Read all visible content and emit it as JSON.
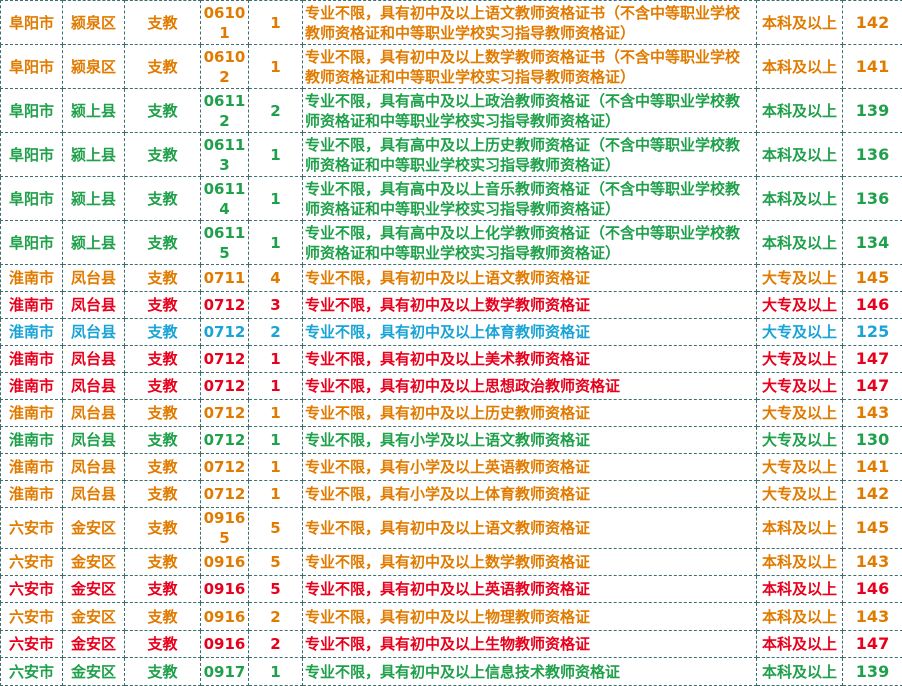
{
  "colors": {
    "orange": "#e07b00",
    "green": "#1fa04a",
    "red": "#e8001c",
    "blue": "#1aa3d6",
    "border": "#3d6f6f"
  },
  "rows": [
    {
      "city": "阜阳市",
      "district": "颍泉区",
      "type": "支教",
      "code": "0610\n1",
      "count": "1",
      "requirement": "专业不限，具有初中及以上语文教师资格证书（不含中等职业学校教师资格证和中等职业学校实习指导教师资格证）",
      "education": "本科及以上",
      "score": "142",
      "color": "orange",
      "size": "tall"
    },
    {
      "city": "阜阳市",
      "district": "颍泉区",
      "type": "支教",
      "code": "0610\n2",
      "count": "1",
      "requirement": "专业不限，具有初中及以上数学教师资格证书（不含中等职业学校教师资格证和中等职业学校实习指导教师资格证）",
      "education": "本科及以上",
      "score": "141",
      "color": "orange",
      "size": "tall"
    },
    {
      "city": "阜阳市",
      "district": "颍上县",
      "type": "支教",
      "code": "0611\n2",
      "count": "2",
      "requirement": "专业不限，具有高中及以上政治教师资格证（不含中等职业学校教师资格证和中等职业学校实习指导教师资格证）",
      "education": "本科及以上",
      "score": "139",
      "color": "green",
      "size": "tall"
    },
    {
      "city": "阜阳市",
      "district": "颍上县",
      "type": "支教",
      "code": "0611\n3",
      "count": "1",
      "requirement": "专业不限，具有高中及以上历史教师资格证（不含中等职业学校教师资格证和中等职业学校实习指导教师资格证）",
      "education": "本科及以上",
      "score": "136",
      "color": "green",
      "size": "tall"
    },
    {
      "city": "阜阳市",
      "district": "颍上县",
      "type": "支教",
      "code": "0611\n4",
      "count": "1",
      "requirement": "专业不限，具有高中及以上音乐教师资格证（不含中等职业学校教师资格证和中等职业学校实习指导教师资格证）",
      "education": "本科及以上",
      "score": "136",
      "color": "green",
      "size": "tall"
    },
    {
      "city": "阜阳市",
      "district": "颍上县",
      "type": "支教",
      "code": "0611\n5",
      "count": "1",
      "requirement": "专业不限，具有高中及以上化学教师资格证（不含中等职业学校教师资格证和中等职业学校实习指导教师资格证）",
      "education": "本科及以上",
      "score": "134",
      "color": "green",
      "size": "tall"
    },
    {
      "city": "淮南市",
      "district": "凤台县",
      "type": "支教",
      "code": "0711",
      "count": "4",
      "requirement": "专业不限，具有初中及以上语文教师资格证",
      "education": "大专及以上",
      "score": "145",
      "color": "orange",
      "size": "short"
    },
    {
      "city": "淮南市",
      "district": "凤台县",
      "type": "支教",
      "code": "0712",
      "count": "3",
      "requirement": "专业不限，具有初中及以上数学教师资格证",
      "education": "大专及以上",
      "score": "146",
      "color": "red",
      "size": "short"
    },
    {
      "city": "淮南市",
      "district": "凤台县",
      "type": "支教",
      "code": "0712",
      "count": "2",
      "requirement": "专业不限，具有初中及以上体育教师资格证",
      "education": "大专及以上",
      "score": "125",
      "color": "blue",
      "size": "short"
    },
    {
      "city": "淮南市",
      "district": "凤台县",
      "type": "支教",
      "code": "0712",
      "count": "1",
      "requirement": "专业不限，具有初中及以上美术教师资格证",
      "education": "大专及以上",
      "score": "147",
      "color": "red",
      "size": "short"
    },
    {
      "city": "淮南市",
      "district": "凤台县",
      "type": "支教",
      "code": "0712",
      "count": "1",
      "requirement": "专业不限，具有初中及以上思想政治教师资格证",
      "education": "大专及以上",
      "score": "147",
      "color": "red",
      "size": "short"
    },
    {
      "city": "淮南市",
      "district": "凤台县",
      "type": "支教",
      "code": "0712",
      "count": "1",
      "requirement": "专业不限，具有初中及以上历史教师资格证",
      "education": "大专及以上",
      "score": "143",
      "color": "orange",
      "size": "short"
    },
    {
      "city": "淮南市",
      "district": "凤台县",
      "type": "支教",
      "code": "0712",
      "count": "1",
      "requirement": "专业不限，具有小学及以上语文教师资格证",
      "education": "大专及以上",
      "score": "130",
      "color": "green",
      "size": "short"
    },
    {
      "city": "淮南市",
      "district": "凤台县",
      "type": "支教",
      "code": "0712",
      "count": "1",
      "requirement": "专业不限，具有小学及以上英语教师资格证",
      "education": "大专及以上",
      "score": "141",
      "color": "orange",
      "size": "short"
    },
    {
      "city": "淮南市",
      "district": "凤台县",
      "type": "支教",
      "code": "0712",
      "count": "1",
      "requirement": "专业不限，具有小学及以上体育教师资格证",
      "education": "大专及以上",
      "score": "142",
      "color": "orange",
      "size": "short"
    },
    {
      "city": "六安市",
      "district": "金安区",
      "type": "支教",
      "code": "0916\n5",
      "count": "5",
      "requirement": "专业不限，具有初中及以上语文教师资格证",
      "education": "本科及以上",
      "score": "145",
      "color": "orange",
      "size": "mid"
    },
    {
      "city": "六安市",
      "district": "金安区",
      "type": "支教",
      "code": "0916",
      "count": "5",
      "requirement": "专业不限，具有初中及以上数学教师资格证",
      "education": "本科及以上",
      "score": "143",
      "color": "orange",
      "size": "short"
    },
    {
      "city": "六安市",
      "district": "金安区",
      "type": "支教",
      "code": "0916",
      "count": "5",
      "requirement": "专业不限，具有初中及以上英语教师资格证",
      "education": "本科及以上",
      "score": "146",
      "color": "red",
      "size": "short"
    },
    {
      "city": "六安市",
      "district": "金安区",
      "type": "支教",
      "code": "0916",
      "count": "2",
      "requirement": "专业不限，具有初中及以上物理教师资格证",
      "education": "本科及以上",
      "score": "143",
      "color": "orange",
      "size": "mid"
    },
    {
      "city": "六安市",
      "district": "金安区",
      "type": "支教",
      "code": "0916",
      "count": "2",
      "requirement": "专业不限，具有初中及以上生物教师资格证",
      "education": "本科及以上",
      "score": "147",
      "color": "red",
      "size": "short"
    },
    {
      "city": "六安市",
      "district": "金安区",
      "type": "支教",
      "code": "0917",
      "count": "1",
      "requirement": "专业不限，具有初中及以上信息技术教师资格证",
      "education": "本科及以上",
      "score": "139",
      "color": "green",
      "size": "mid"
    }
  ]
}
